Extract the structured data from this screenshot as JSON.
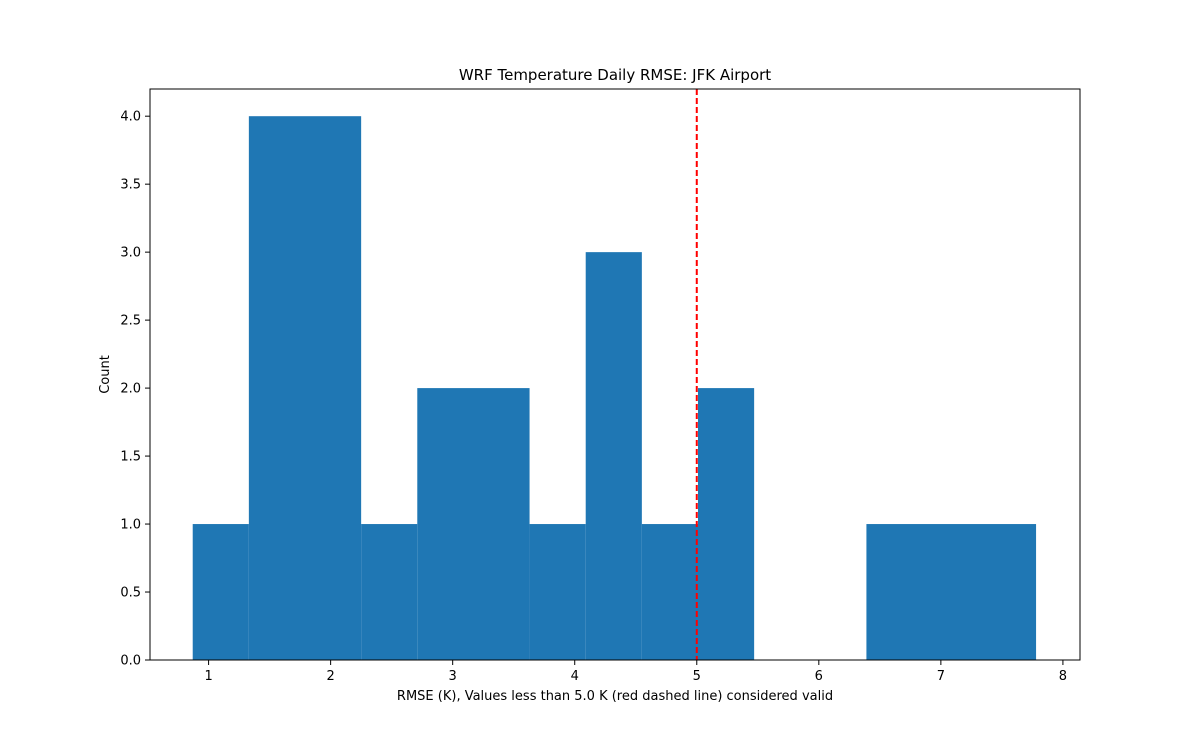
{
  "chart_data": {
    "type": "bar",
    "title": "WRF Temperature Daily RMSE: JFK Airport",
    "xlabel": "RMSE (K), Values less than 5.0 K (red dashed line) considered valid",
    "ylabel": "Count",
    "xlim": [
      0.52,
      8.14
    ],
    "ylim": [
      0,
      4.2
    ],
    "x_ticks": [
      1,
      2,
      3,
      4,
      5,
      6,
      7,
      8
    ],
    "y_ticks": [
      0.0,
      0.5,
      1.0,
      1.5,
      2.0,
      2.5,
      3.0,
      3.5,
      4.0
    ],
    "y_tick_labels": [
      "0.0",
      "0.5",
      "1.0",
      "1.5",
      "2.0",
      "2.5",
      "3.0",
      "3.5",
      "4.0"
    ],
    "bin_edges": [
      0.87,
      1.33,
      1.79,
      2.25,
      2.71,
      3.17,
      3.63,
      4.09,
      4.55,
      5.01,
      5.47,
      5.93,
      6.39,
      6.85,
      7.31,
      7.78
    ],
    "bins": [
      {
        "x0": 0.87,
        "x1": 1.33,
        "count": 1
      },
      {
        "x0": 1.33,
        "x1": 2.25,
        "count": 4
      },
      {
        "x0": 2.25,
        "x1": 2.71,
        "count": 1
      },
      {
        "x0": 2.71,
        "x1": 3.63,
        "count": 2
      },
      {
        "x0": 3.63,
        "x1": 4.09,
        "count": 1
      },
      {
        "x0": 4.09,
        "x1": 4.55,
        "count": 3
      },
      {
        "x0": 4.55,
        "x1": 5.01,
        "count": 1
      },
      {
        "x0": 5.01,
        "x1": 5.47,
        "count": 2
      },
      {
        "x0": 6.39,
        "x1": 7.78,
        "count": 1
      }
    ],
    "threshold": {
      "x": 5.0,
      "color": "#ff0000",
      "style": "dashed"
    },
    "bar_color": "#1f77b4",
    "grid": false,
    "legend": "none"
  }
}
